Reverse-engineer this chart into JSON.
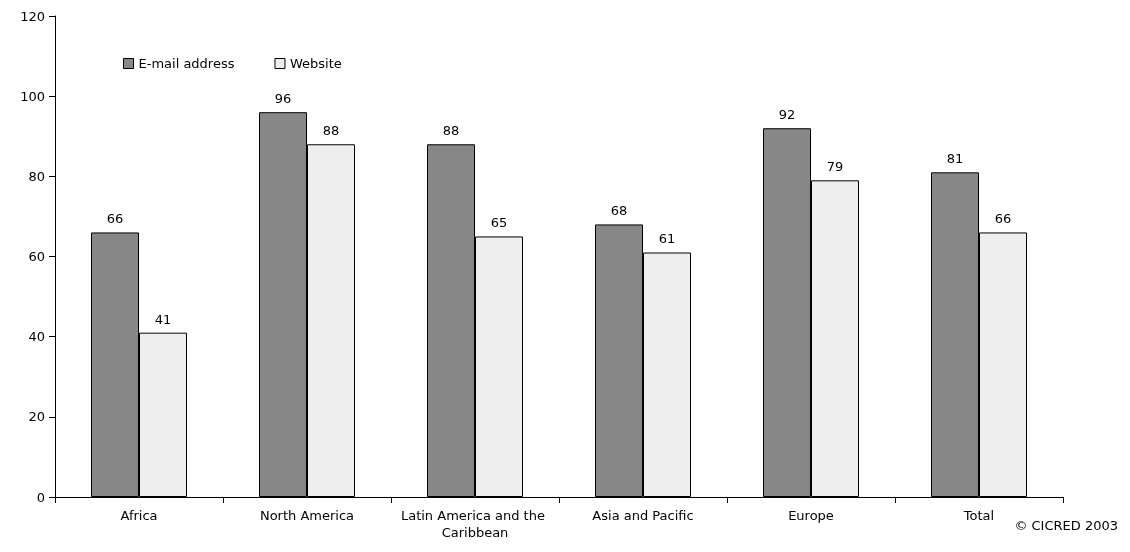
{
  "chart_data": {
    "type": "bar",
    "categories": [
      "Africa",
      "North America",
      "Latin America and the Caribbean",
      "Asia and Pacific",
      "Europe",
      "Total"
    ],
    "series": [
      {
        "name": "E-mail address",
        "color": "#878787",
        "values": [
          66,
          96,
          88,
          68,
          92,
          81
        ]
      },
      {
        "name": "Website",
        "color": "#eeeeee",
        "values": [
          41,
          88,
          65,
          61,
          79,
          66
        ]
      }
    ],
    "ylim": [
      0,
      120
    ],
    "yticks": [
      0,
      20,
      40,
      60,
      80,
      100,
      120
    ],
    "grid": false,
    "legend": "top left",
    "data_labels": true,
    "annotations": [
      "© CICRED 2003"
    ]
  }
}
